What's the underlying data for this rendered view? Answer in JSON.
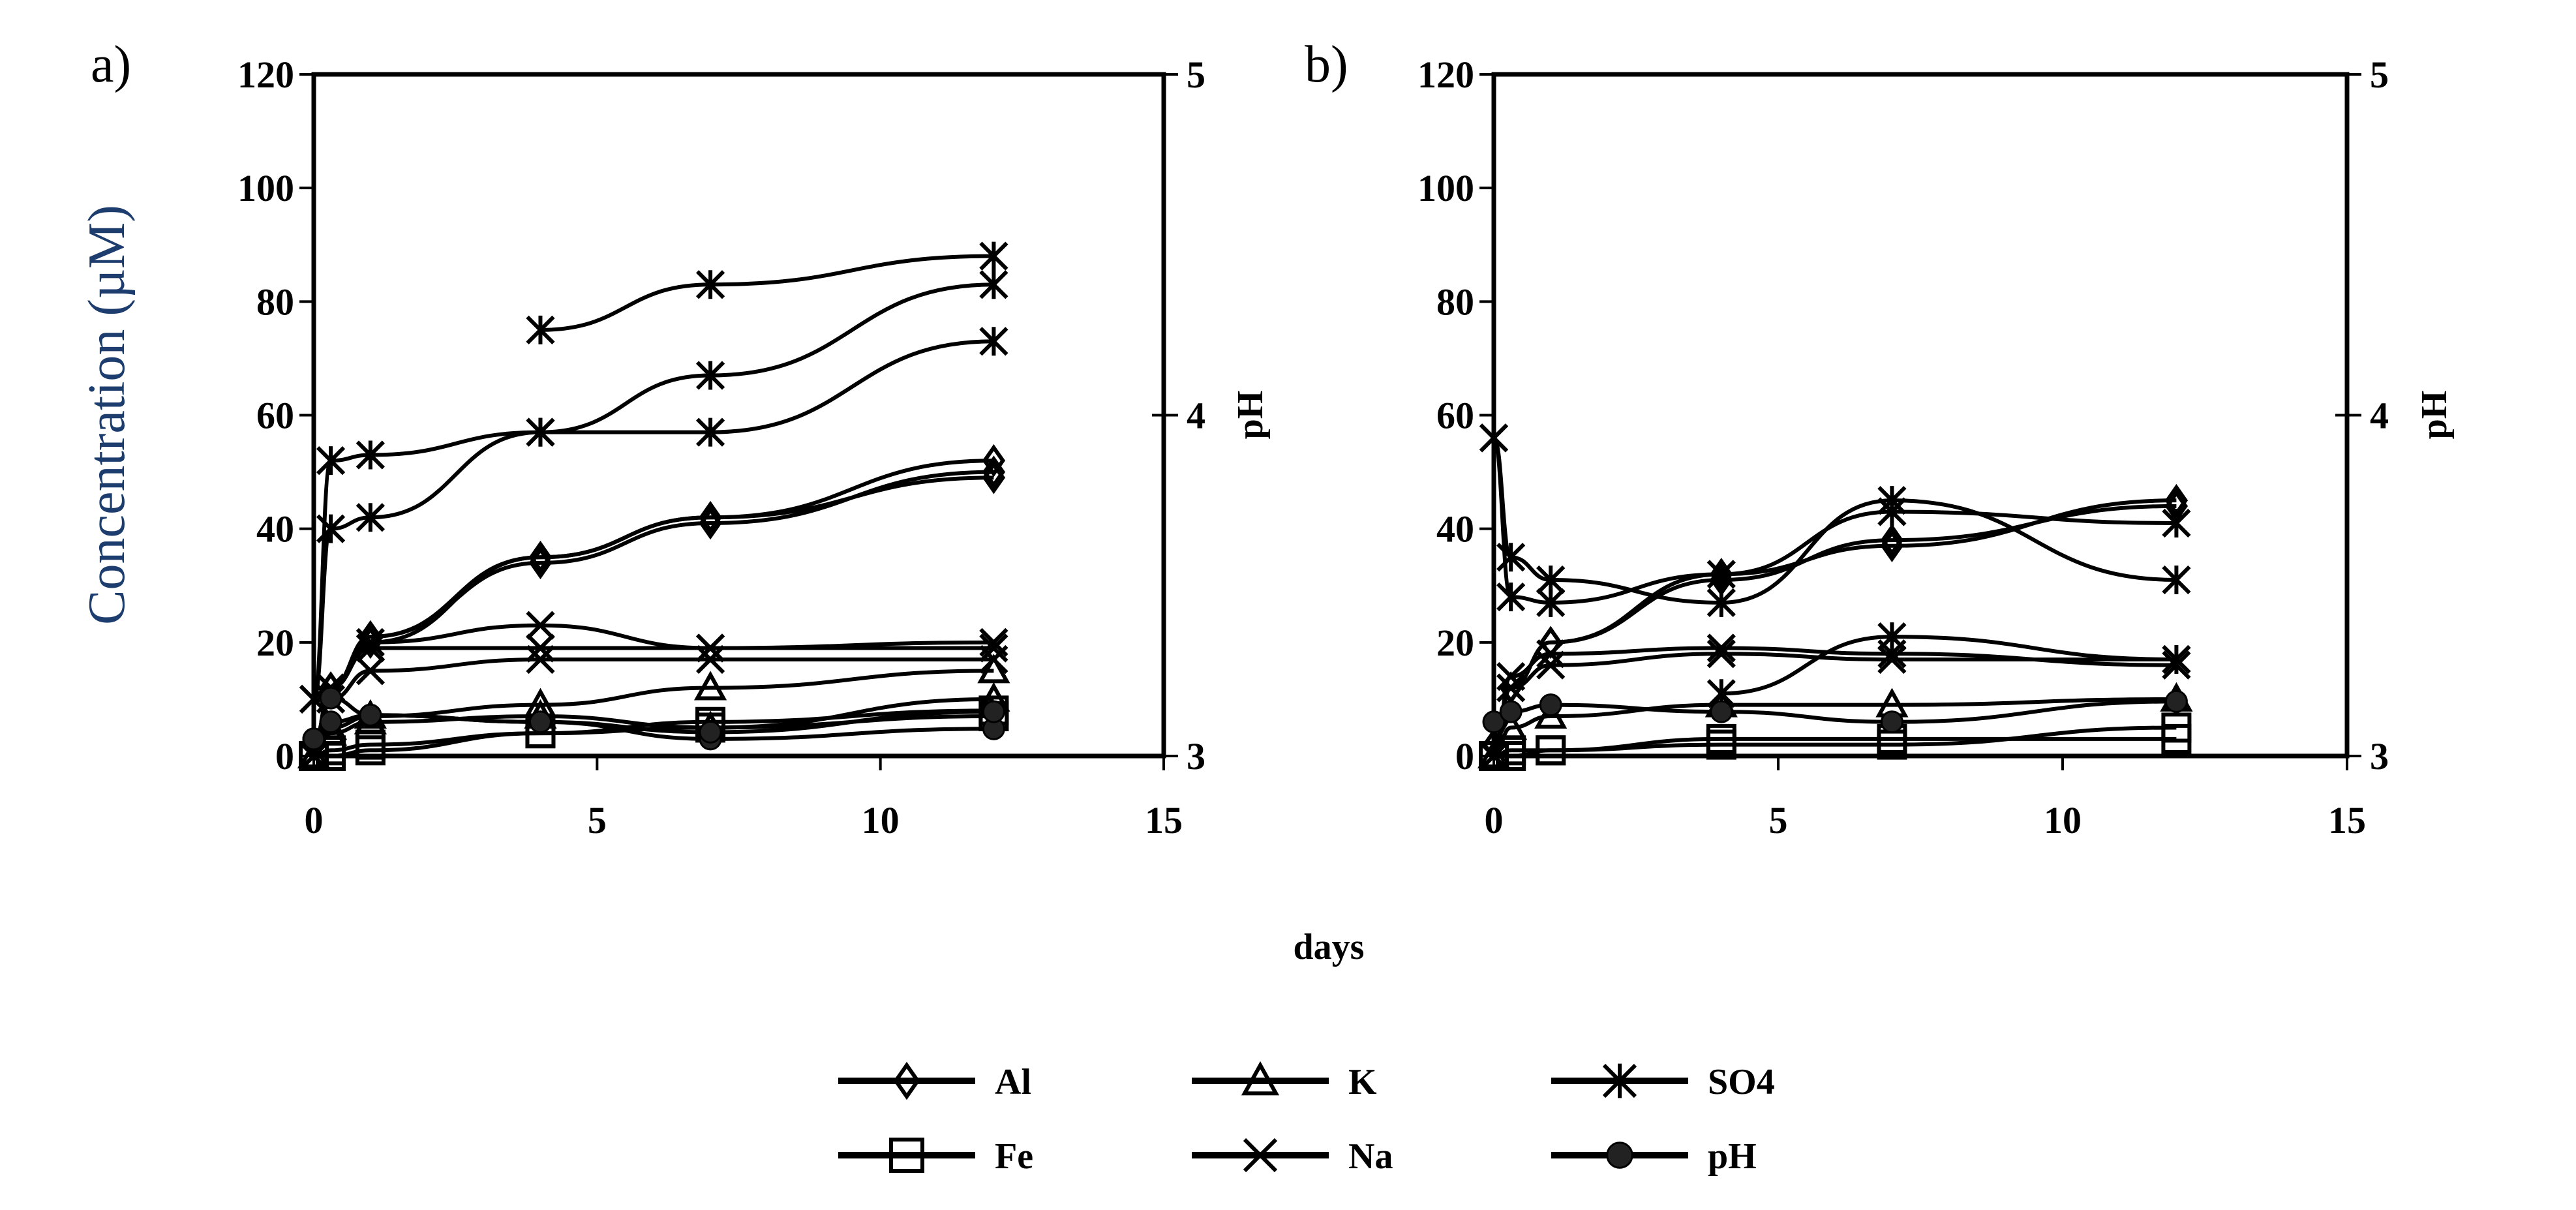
{
  "chart_data": {
    "type": "line",
    "xlabel": "days",
    "legend_position": "bottom-center",
    "legend": [
      {
        "name": "Al",
        "marker": "diamond"
      },
      {
        "name": "K",
        "marker": "triangle"
      },
      {
        "name": "SO4",
        "marker": "asterisk"
      },
      {
        "name": "Fe",
        "marker": "square"
      },
      {
        "name": "Na",
        "marker": "x"
      },
      {
        "name": "pH",
        "marker": "circle"
      }
    ],
    "panels": [
      {
        "label": "a)",
        "ylabel": "Concentration (µM)",
        "y2label": "pH",
        "xlim": [
          0,
          15
        ],
        "xticks": [
          "0",
          "5",
          "10",
          "15"
        ],
        "ylim": [
          0,
          120
        ],
        "yticks": [
          "0",
          "20",
          "40",
          "60",
          "80",
          "100",
          "120"
        ],
        "y2lim": [
          3,
          5
        ],
        "y2ticks": [
          "3",
          "4",
          "5"
        ],
        "x": [
          0,
          0.3,
          1,
          4,
          7,
          12
        ],
        "series": [
          {
            "name": "SO4",
            "axis": "left",
            "values": [
              10,
              52,
              53,
              57,
              57,
              73
            ]
          },
          {
            "name": "SO4",
            "axis": "left",
            "values": [
              10,
              40,
              42,
              57,
              67,
              83
            ]
          },
          {
            "name": "SO4",
            "axis": "left",
            "values": [
              null,
              null,
              null,
              75,
              83,
              88
            ]
          },
          {
            "name": "Al",
            "axis": "left",
            "values": [
              2,
              12,
              21,
              34,
              41,
              50
            ]
          },
          {
            "name": "Al",
            "axis": "left",
            "values": [
              2,
              12,
              20,
              35,
              42,
              52
            ]
          },
          {
            "name": "Al",
            "axis": "left",
            "values": [
              2,
              12,
              21,
              35,
              42,
              49
            ]
          },
          {
            "name": "Na",
            "axis": "left",
            "values": [
              0,
              10,
              15,
              17,
              17,
              17
            ]
          },
          {
            "name": "Na",
            "axis": "left",
            "values": [
              0,
              12,
              20,
              23,
              19,
              20
            ]
          },
          {
            "name": "Na",
            "axis": "left",
            "values": [
              0,
              12,
              19,
              19,
              19,
              19
            ]
          },
          {
            "name": "K",
            "axis": "left",
            "values": [
              0,
              5,
              7,
              9,
              12,
              15
            ]
          },
          {
            "name": "K",
            "axis": "left",
            "values": [
              0,
              4,
              6,
              7,
              5,
              10
            ]
          },
          {
            "name": "Fe",
            "axis": "left",
            "values": [
              0,
              1,
              2,
              4,
              5,
              7
            ]
          },
          {
            "name": "Fe",
            "axis": "left",
            "values": [
              0,
              0,
              1,
              4,
              6,
              8
            ]
          },
          {
            "name": "pH",
            "axis": "right",
            "values": [
              3.05,
              3.17,
              3.12,
              3.1,
              3.05,
              3.08
            ]
          },
          {
            "name": "pH",
            "axis": "right",
            "values": [
              3.05,
              3.1,
              3.12,
              3.1,
              3.07,
              3.13
            ]
          }
        ]
      },
      {
        "label": "b)",
        "ylabel": "",
        "y2label": "pH",
        "xlim": [
          0,
          15
        ],
        "xticks": [
          "0",
          "5",
          "10",
          "15"
        ],
        "ylim": [
          0,
          120
        ],
        "yticks": [
          "0",
          "20",
          "40",
          "60",
          "80",
          "100",
          "120"
        ],
        "y2lim": [
          3,
          5
        ],
        "y2ticks": [
          "3",
          "4",
          "5"
        ],
        "x": [
          0,
          0.3,
          1,
          4,
          7,
          12
        ],
        "series": [
          {
            "name": "SO4",
            "axis": "left",
            "values": [
              56,
              35,
              31,
              27,
              45,
              31
            ]
          },
          {
            "name": "SO4",
            "axis": "left",
            "values": [
              56,
              28,
              27,
              32,
              43,
              41
            ]
          },
          {
            "name": "SO4",
            "axis": "left",
            "values": [
              null,
              null,
              null,
              11,
              21,
              17
            ]
          },
          {
            "name": "Al",
            "axis": "left",
            "values": [
              2,
              12,
              20,
              32,
              37,
              45
            ]
          },
          {
            "name": "Al",
            "axis": "left",
            "values": [
              2,
              12,
              20,
              31,
              38,
              44
            ]
          },
          {
            "name": "Na",
            "axis": "left",
            "values": [
              0,
              12,
              16,
              18,
              17,
              17
            ]
          },
          {
            "name": "Na",
            "axis": "left",
            "values": [
              0,
              14,
              18,
              19,
              18,
              16
            ]
          },
          {
            "name": "K",
            "axis": "left",
            "values": [
              0,
              5,
              7,
              9,
              9,
              10
            ]
          },
          {
            "name": "Fe",
            "axis": "left",
            "values": [
              0,
              1,
              1,
              2,
              2,
              5
            ]
          },
          {
            "name": "Fe",
            "axis": "left",
            "values": [
              0,
              0,
              1,
              3,
              3,
              3
            ]
          },
          {
            "name": "pH",
            "axis": "right",
            "values": [
              3.1,
              3.13,
              3.15,
              3.13,
              3.1,
              3.16
            ]
          }
        ]
      }
    ]
  }
}
